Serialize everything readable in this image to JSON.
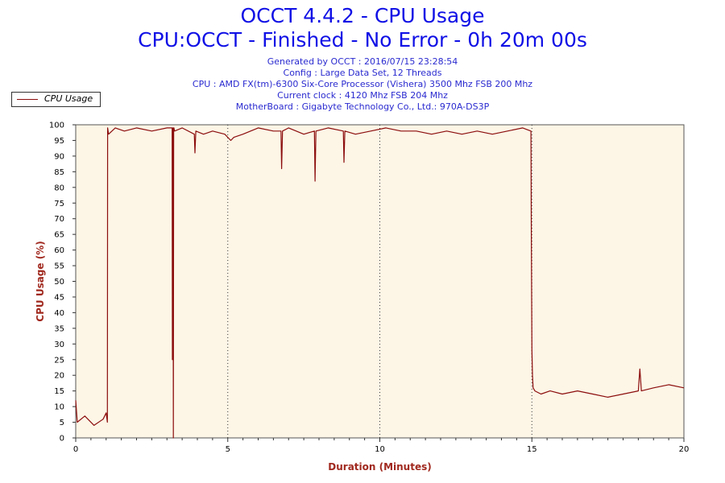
{
  "header": {
    "title": "OCCT 4.4.2 - CPU Usage",
    "subtitle": "CPU:OCCT - Finished - No Error - 0h 20m 00s",
    "info": [
      "Generated by OCCT : 2016/07/15 23:28:54",
      "Config : Large Data Set, 12 Threads",
      "CPU : AMD FX(tm)-6300 Six-Core Processor (Vishera) 3500 Mhz FSB 200 Mhz",
      "Current clock : 4120 Mhz FSB 204 Mhz",
      "MotherBoard : Gigabyte Technology Co., Ltd.: 970A-DS3P"
    ]
  },
  "colors": {
    "series": "#8b0d0d",
    "plot_background": "#fdf5e6",
    "axis_label": "#a0281e",
    "title": "#1010e6",
    "info": "#2a2ad0"
  },
  "chart_data": {
    "type": "line",
    "title": "OCCT 4.4.2 - CPU Usage",
    "xlabel": "Duration (Minutes)",
    "ylabel": "CPU Usage (%)",
    "xlim": [
      0,
      20
    ],
    "ylim": [
      0,
      100
    ],
    "xticks": [
      0,
      5,
      10,
      15,
      20
    ],
    "yticks": [
      0,
      5,
      10,
      15,
      20,
      25,
      30,
      35,
      40,
      45,
      50,
      55,
      60,
      65,
      70,
      75,
      80,
      85,
      90,
      95,
      100
    ],
    "grid": "vertical dotted at major x ticks",
    "legend_position": "top-left",
    "series": [
      {
        "name": "CPU Usage",
        "x": [
          0,
          0.05,
          0.3,
          0.6,
          0.9,
          1.0,
          1.04,
          1.05,
          1.08,
          1.3,
          1.6,
          2.0,
          2.5,
          3.0,
          3.17,
          3.18,
          3.2,
          3.21,
          3.22,
          3.23,
          3.25,
          3.5,
          3.9,
          3.92,
          3.95,
          4.2,
          4.5,
          4.9,
          5.1,
          5.2,
          5.5,
          6.0,
          6.5,
          6.75,
          6.77,
          6.8,
          7.0,
          7.5,
          7.85,
          7.87,
          7.9,
          8.3,
          8.8,
          8.82,
          8.85,
          9.2,
          9.7,
          10.2,
          10.7,
          11.2,
          11.7,
          12.2,
          12.7,
          13.2,
          13.7,
          14.2,
          14.7,
          14.97,
          14.98,
          15.0,
          15.02,
          15.04,
          15.1,
          15.3,
          15.6,
          16.0,
          16.5,
          17.0,
          17.5,
          18.0,
          18.5,
          18.55,
          18.6,
          19.0,
          19.5,
          20.0
        ],
        "values": [
          12,
          5,
          7,
          4,
          6,
          8,
          5,
          99,
          97,
          99,
          98,
          99,
          98,
          99,
          99,
          25,
          99,
          0,
          99,
          99,
          98,
          99,
          97,
          91,
          98,
          97,
          98,
          97,
          95,
          96,
          97,
          99,
          98,
          98,
          86,
          98,
          99,
          97,
          98,
          82,
          98,
          99,
          98,
          88,
          98,
          97,
          98,
          99,
          98,
          98,
          97,
          98,
          97,
          98,
          97,
          98,
          99,
          98,
          70,
          28,
          20,
          16,
          15,
          14,
          15,
          14,
          15,
          14,
          13,
          14,
          15,
          22,
          15,
          16,
          17,
          16
        ]
      }
    ]
  }
}
